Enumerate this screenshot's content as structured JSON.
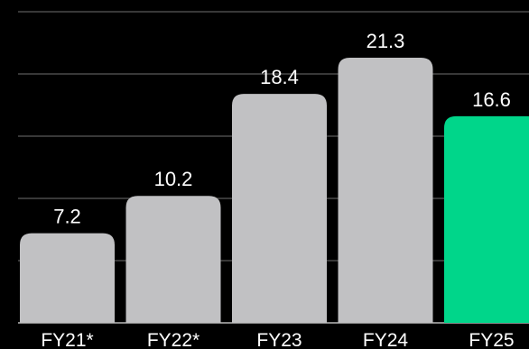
{
  "chart_data": {
    "type": "bar",
    "categories": [
      "FY21*",
      "FY22*",
      "FY23",
      "FY24",
      "FY25"
    ],
    "values": [
      7.2,
      10.2,
      18.4,
      21.3,
      16.6
    ],
    "data_labels": [
      "7.2",
      "10.2",
      "18.4",
      "21.3",
      "16.6"
    ],
    "bar_colors": [
      "#c1c1c3",
      "#c1c1c3",
      "#c1c1c3",
      "#c1c1c3",
      "#00d68a"
    ],
    "title": "",
    "xlabel": "",
    "ylabel": "",
    "ylim": [
      0,
      25
    ],
    "grid": true,
    "legend": "none"
  }
}
